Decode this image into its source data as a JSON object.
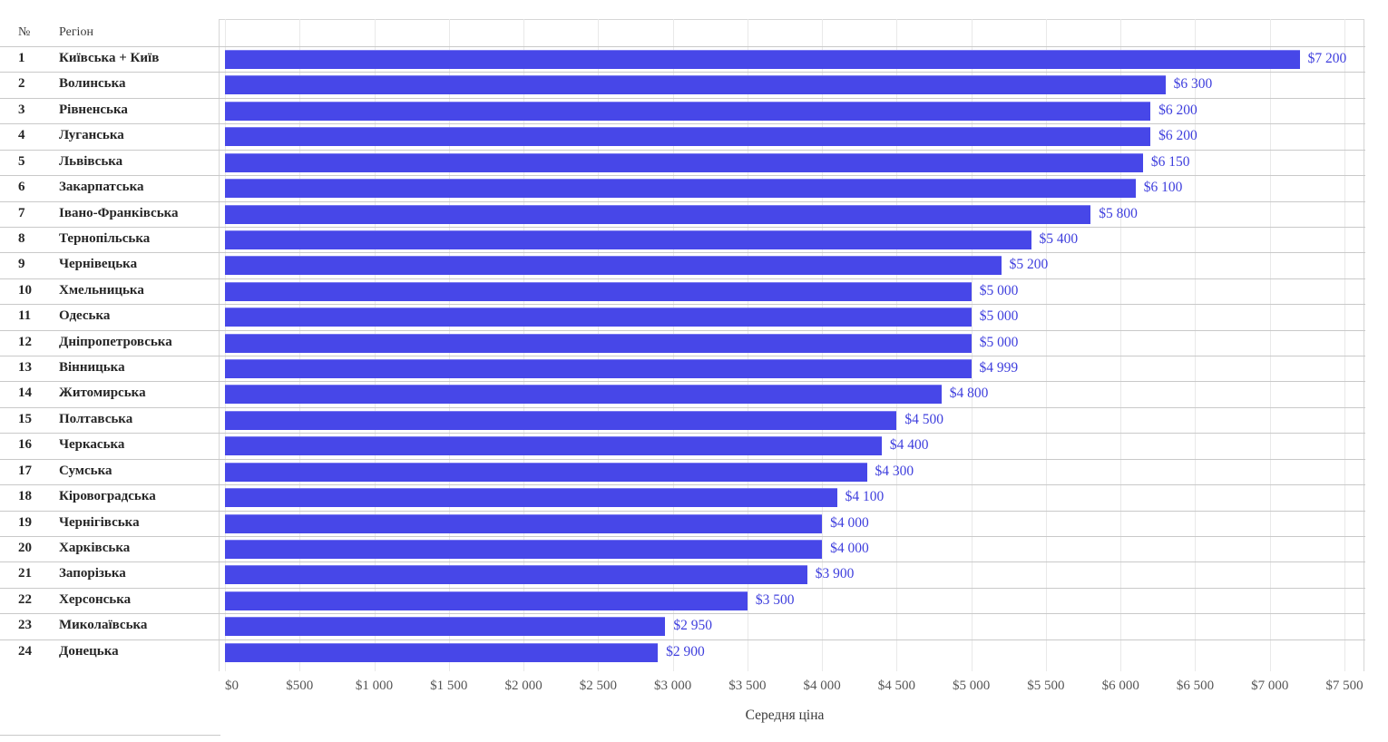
{
  "table": {
    "headers": {
      "number": "№",
      "region": "Регіон"
    }
  },
  "colors": {
    "bar": "#4747e8",
    "bar_top_edge": "#7a7af0",
    "value_label": "#3e3edd",
    "region_text": "#262626",
    "tick_text": "#565656",
    "gridline": "#e9e9e9",
    "row_separator": "#c9c9c9"
  },
  "chart_data": {
    "type": "bar",
    "orientation": "horizontal",
    "xlabel": "Середня ціна",
    "ylabel": "Регіон",
    "xlim": [
      0,
      7500
    ],
    "grid": "vertical",
    "legend": "none",
    "x_tick_step": 500,
    "x_ticks": [
      "$0",
      "$500",
      "$1 000",
      "$1 500",
      "$2 000",
      "$2 500",
      "$3 000",
      "$3 500",
      "$4 000",
      "$4 500",
      "$5 000",
      "$5 500",
      "$6 000",
      "$6 500",
      "$7 000",
      "$7 500"
    ],
    "rows": [
      {
        "rank": "1",
        "region": "Київська + Київ",
        "value": 7200,
        "label": "$7 200"
      },
      {
        "rank": "2",
        "region": "Волинська",
        "value": 6300,
        "label": "$6 300"
      },
      {
        "rank": "3",
        "region": "Рівненська",
        "value": 6200,
        "label": "$6 200"
      },
      {
        "rank": "4",
        "region": "Луганська",
        "value": 6200,
        "label": "$6 200"
      },
      {
        "rank": "5",
        "region": "Львівська",
        "value": 6150,
        "label": "$6 150"
      },
      {
        "rank": "6",
        "region": "Закарпатська",
        "value": 6100,
        "label": "$6 100"
      },
      {
        "rank": "7",
        "region": "Івано-Франківська",
        "value": 5800,
        "label": "$5 800"
      },
      {
        "rank": "8",
        "region": "Тернопільська",
        "value": 5400,
        "label": "$5 400"
      },
      {
        "rank": "9",
        "region": "Чернівецька",
        "value": 5200,
        "label": "$5 200"
      },
      {
        "rank": "10",
        "region": "Хмельницька",
        "value": 5000,
        "label": "$5 000"
      },
      {
        "rank": "11",
        "region": "Одеська",
        "value": 5000,
        "label": "$5 000"
      },
      {
        "rank": "12",
        "region": "Дніпропетровська",
        "value": 5000,
        "label": "$5 000"
      },
      {
        "rank": "13",
        "region": "Вінницька",
        "value": 4999,
        "label": "$4 999"
      },
      {
        "rank": "14",
        "region": "Житомирська",
        "value": 4800,
        "label": "$4 800"
      },
      {
        "rank": "15",
        "region": "Полтавська",
        "value": 4500,
        "label": "$4 500"
      },
      {
        "rank": "16",
        "region": "Черкаська",
        "value": 4400,
        "label": "$4 400"
      },
      {
        "rank": "17",
        "region": "Сумська",
        "value": 4300,
        "label": "$4 300"
      },
      {
        "rank": "18",
        "region": "Кіровоградська",
        "value": 4100,
        "label": "$4 100"
      },
      {
        "rank": "19",
        "region": "Чернігівська",
        "value": 4000,
        "label": "$4 000"
      },
      {
        "rank": "20",
        "region": "Харківська",
        "value": 4000,
        "label": "$4 000"
      },
      {
        "rank": "21",
        "region": "Запорізька",
        "value": 3900,
        "label": "$3 900"
      },
      {
        "rank": "22",
        "region": "Херсонська",
        "value": 3500,
        "label": "$3 500"
      },
      {
        "rank": "23",
        "region": "Миколаївська",
        "value": 2950,
        "label": "$2 950"
      },
      {
        "rank": "24",
        "region": "Донецька",
        "value": 2900,
        "label": "$2 900"
      }
    ]
  }
}
